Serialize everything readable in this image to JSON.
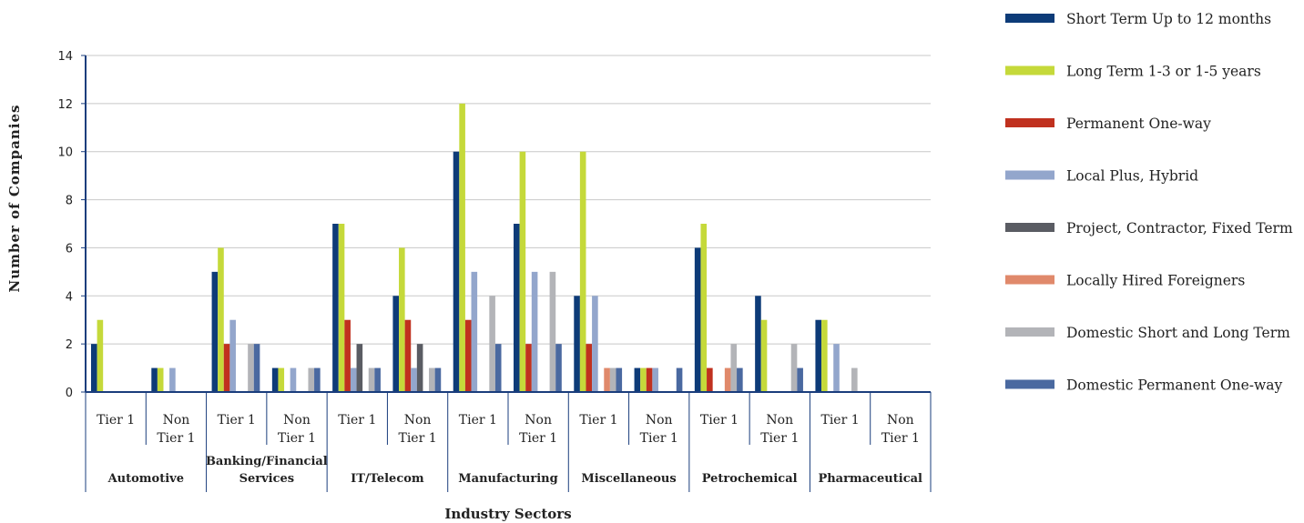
{
  "chart_data": {
    "type": "bar",
    "xlabel": "Industry Sectors",
    "ylabel": "Number of Companies",
    "ylim": [
      0,
      14
    ],
    "yticks": [
      0,
      2,
      4,
      6,
      8,
      10,
      12,
      14
    ],
    "grid": true,
    "legend_position": "right",
    "groups": [
      {
        "name": "Automotive",
        "sub": [
          "Tier 1",
          "Non Tier 1"
        ]
      },
      {
        "name": "Banking/Financial Services",
        "sub": [
          "Tier 1",
          "Non Tier 1"
        ]
      },
      {
        "name": "IT/Telecom",
        "sub": [
          "Tier 1",
          "Non Tier 1"
        ]
      },
      {
        "name": "Manufacturing",
        "sub": [
          "Tier 1",
          "Non Tier 1"
        ]
      },
      {
        "name": "Miscellaneous",
        "sub": [
          "Tier 1",
          "Non Tier 1"
        ]
      },
      {
        "name": "Petrochemical",
        "sub": [
          "Tier 1",
          "Non Tier 1"
        ]
      },
      {
        "name": "Pharmaceutical",
        "sub": [
          "Tier 1",
          "Non Tier 1"
        ]
      }
    ],
    "categories": [
      "Automotive Tier 1",
      "Automotive Non Tier 1",
      "Banking/Financial Services Tier 1",
      "Banking/Financial Services Non Tier 1",
      "IT/Telecom Tier 1",
      "IT/Telecom Non Tier 1",
      "Manufacturing Tier 1",
      "Manufacturing Non Tier 1",
      "Miscellaneous Tier 1",
      "Miscellaneous Non Tier 1",
      "Petrochemical Tier 1",
      "Petrochemical Non Tier 1",
      "Pharmaceutical Tier 1",
      "Pharmaceutical Non Tier 1"
    ],
    "series": [
      {
        "name": "Short Term Up to 12 months",
        "color": "#0d3b78",
        "values": [
          2,
          1,
          5,
          1,
          7,
          4,
          10,
          7,
          4,
          1,
          6,
          4,
          3,
          0
        ]
      },
      {
        "name": "Long Term 1-3 or 1-5 years",
        "color": "#c5d93a",
        "values": [
          3,
          1,
          6,
          1,
          7,
          6,
          12,
          10,
          10,
          1,
          7,
          3,
          3,
          0
        ]
      },
      {
        "name": "Permanent One-way",
        "color": "#c0311f",
        "values": [
          0,
          0,
          2,
          0,
          3,
          3,
          3,
          2,
          2,
          1,
          1,
          0,
          0,
          0
        ]
      },
      {
        "name": "Local Plus, Hybrid",
        "color": "#93a6cc",
        "values": [
          0,
          1,
          3,
          1,
          1,
          1,
          5,
          5,
          4,
          1,
          0,
          0,
          2,
          0
        ]
      },
      {
        "name": "Project, Contractor, Fixed Term",
        "color": "#5a5c63",
        "values": [
          0,
          0,
          0,
          0,
          2,
          2,
          0,
          0,
          0,
          0,
          0,
          0,
          0,
          0
        ]
      },
      {
        "name": "Locally Hired Foreigners",
        "color": "#e0896b",
        "values": [
          0,
          0,
          0,
          0,
          0,
          0,
          0,
          0,
          1,
          0,
          1,
          0,
          0,
          0
        ]
      },
      {
        "name": "Domestic Short and Long Term",
        "color": "#b3b4b8",
        "values": [
          0,
          0,
          2,
          1,
          1,
          1,
          4,
          5,
          1,
          0,
          2,
          2,
          1,
          0
        ]
      },
      {
        "name": "Domestic Permanent One-way",
        "color": "#4a69a0",
        "values": [
          0,
          0,
          2,
          1,
          1,
          1,
          2,
          2,
          1,
          1,
          1,
          1,
          0,
          0
        ]
      }
    ]
  }
}
